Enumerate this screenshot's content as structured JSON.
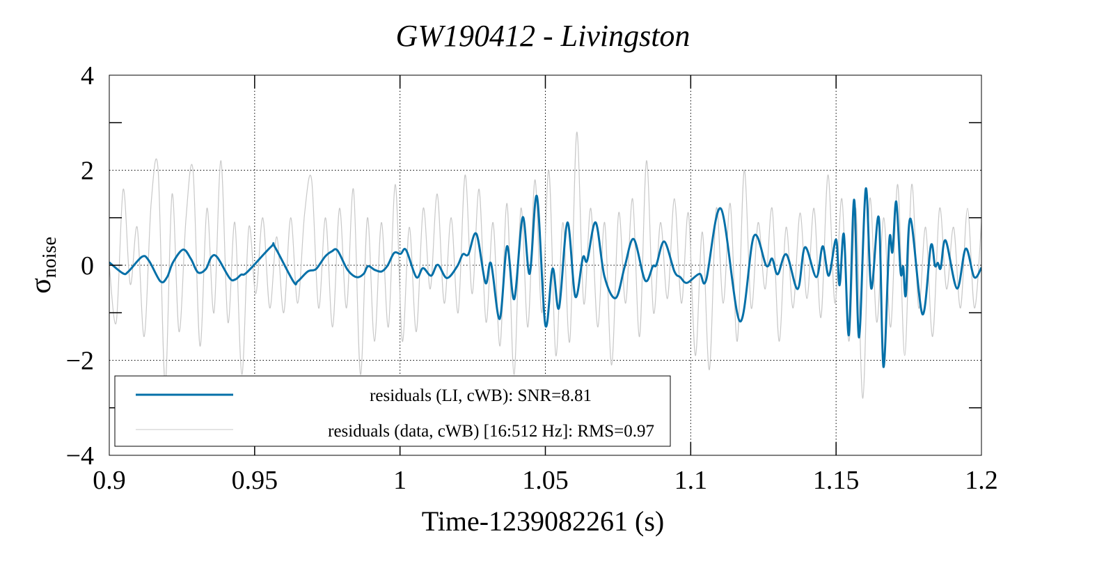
{
  "chart_data": {
    "type": "line",
    "title": "GW190412 - Livingston",
    "xlabel": "Time-1239082261 (s)",
    "ylabel": "σ",
    "ylabel_sub": "noise",
    "xlim": [
      0.9,
      1.2
    ],
    "ylim": [
      -4,
      4
    ],
    "xticks": [
      0.9,
      0.95,
      1.0,
      1.05,
      1.1,
      1.15,
      1.2
    ],
    "xtick_labels": [
      "0.9",
      "0.95",
      "1",
      "1.05",
      "1.1",
      "1.15",
      "1.2"
    ],
    "yticks": [
      4,
      2,
      0,
      -2,
      -4
    ],
    "ytick_labels": [
      "4",
      "2",
      "0",
      "−2",
      "−4"
    ],
    "grid": true,
    "legend_position": "bottom-left",
    "series": [
      {
        "name": "residuals (LI, cWB): SNR=8.81",
        "color": "#0570a8",
        "x": [
          0.9,
          0.9047,
          0.9066,
          0.9113,
          0.9137,
          0.9176,
          0.9199,
          0.9219,
          0.9254,
          0.9281,
          0.9305,
          0.9332,
          0.9351,
          0.9371,
          0.9414,
          0.9433,
          0.9453,
          0.9465,
          0.9488,
          0.9558,
          0.957,
          0.9633,
          0.9648,
          0.9683,
          0.9711,
          0.9742,
          0.9765,
          0.9785,
          0.982,
          0.9851,
          0.9875,
          0.989,
          0.9914,
          0.9937,
          0.9957,
          0.998,
          1.0002,
          1.0021,
          1.0056,
          1.0079,
          1.0107,
          1.013,
          1.0161,
          1.0196,
          1.0216,
          1.0235,
          1.0263,
          1.0294,
          1.0313,
          1.0343,
          1.0368,
          1.0393,
          1.0422,
          1.0446,
          1.0471,
          1.05,
          1.0525,
          1.0547,
          1.0576,
          1.0603,
          1.0629,
          1.0644,
          1.0673,
          1.0703,
          1.0742,
          1.0773,
          1.0804,
          1.0843,
          1.087,
          1.0882,
          1.0909,
          1.0944,
          1.0964,
          1.0987,
          1.103,
          1.1053,
          1.1104,
          1.1169,
          1.1217,
          1.126,
          1.128,
          1.1299,
          1.1329,
          1.1368,
          1.1393,
          1.1432,
          1.1454,
          1.1475,
          1.15,
          1.1512,
          1.1527,
          1.1544,
          1.1562,
          1.1579,
          1.1602,
          1.1621,
          1.1647,
          1.1663,
          1.1683,
          1.1694,
          1.1707,
          1.1722,
          1.1731,
          1.174,
          1.1756,
          1.1797,
          1.1826,
          1.184,
          1.185,
          1.186,
          1.1877,
          1.1916,
          1.1946,
          1.1975,
          1.2
        ],
        "y": [
          0.06,
          -0.17,
          -0.13,
          0.18,
          0.09,
          -0.34,
          -0.25,
          0.06,
          0.33,
          0.13,
          -0.15,
          -0.08,
          0.17,
          0.17,
          -0.27,
          -0.3,
          -0.2,
          -0.19,
          -0.06,
          0.4,
          0.38,
          -0.34,
          -0.34,
          -0.13,
          -0.08,
          0.18,
          0.29,
          0.31,
          -0.1,
          -0.25,
          -0.18,
          -0.02,
          -0.1,
          -0.13,
          -0.01,
          0.26,
          0.24,
          0.32,
          -0.25,
          -0.06,
          -0.22,
          0.01,
          -0.27,
          -0.03,
          0.23,
          0.23,
          0.66,
          -0.37,
          0.04,
          -1.13,
          0.4,
          -0.71,
          1.01,
          -0.18,
          1.45,
          -1.26,
          -0.07,
          -0.9,
          0.9,
          -0.66,
          0.16,
          0.1,
          0.9,
          -0.23,
          -0.69,
          -0.03,
          0.55,
          -0.32,
          -0.02,
          0.01,
          0.5,
          -0.13,
          -0.25,
          -0.37,
          -0.18,
          -0.31,
          1.19,
          -1.18,
          0.61,
          -0.01,
          0.14,
          -0.19,
          0.23,
          -0.5,
          0.38,
          -0.25,
          0.4,
          -0.22,
          0.54,
          -0.42,
          0.65,
          -1.47,
          1.38,
          -1.52,
          1.61,
          -0.49,
          1.0,
          -2.14,
          0.52,
          0.28,
          1.34,
          -0.15,
          -0.03,
          -0.63,
          0.98,
          -1.03,
          0.41,
          -0.01,
          0.05,
          -0.06,
          0.52,
          -0.49,
          0.35,
          -0.25,
          -0.05
        ]
      },
      {
        "name": "residuals (data, cWB) [16:512 Hz]: RMS=0.97",
        "color": "#c8c8c8",
        "x_start": 0.9,
        "x_step": 0.0024,
        "y": [
          0.0,
          -1.2,
          1.6,
          -0.4,
          0.8,
          -1.5,
          1.3,
          2.0,
          -2.5,
          1.5,
          -1.4,
          1.0,
          2.0,
          -1.7,
          1.2,
          -1.0,
          2.2,
          -1.2,
          0.9,
          -2.3,
          0.8,
          -0.6,
          1.0,
          -0.9,
          0.6,
          -1.0,
          1.0,
          -0.8,
          1.1,
          1.8,
          -0.9,
          1.0,
          -1.3,
          1.2,
          -0.9,
          1.6,
          -2.3,
          1.0,
          -1.6,
          0.9,
          -1.3,
          1.7,
          -1.6,
          0.8,
          -1.4,
          1.2,
          -0.5,
          1.5,
          -0.8,
          1.0,
          -1.0,
          1.9,
          -0.6,
          1.6,
          -1.2,
          0.9,
          -1.7,
          1.3,
          -2.3,
          1.2,
          -1.3,
          1.8,
          -1.0,
          2.0,
          -1.9,
          0.9,
          -1.6,
          2.8,
          -0.8,
          1.2,
          -1.3,
          0.9,
          -2.1,
          1.1,
          -0.8,
          1.4,
          -1.5,
          2.2,
          -1.0,
          0.9,
          -0.7,
          1.4,
          -0.8,
          1.1,
          -1.9,
          0.7,
          -2.2,
          1.2,
          -0.8,
          1.3,
          -1.6,
          2.0,
          -0.9,
          0.9,
          -0.5,
          1.2,
          -1.6,
          0.8,
          -0.9,
          1.1,
          -0.7,
          1.2,
          -1.1,
          1.9,
          -0.8,
          1.4,
          -1.6,
          1.2,
          -2.8,
          1.4,
          -1.2,
          1.0,
          -1.3,
          1.7,
          -1.9,
          1.7,
          -0.9,
          0.8,
          -1.5,
          1.2,
          -0.5,
          0.8,
          -0.9,
          1.2,
          -0.9,
          0.9
        ]
      }
    ]
  }
}
